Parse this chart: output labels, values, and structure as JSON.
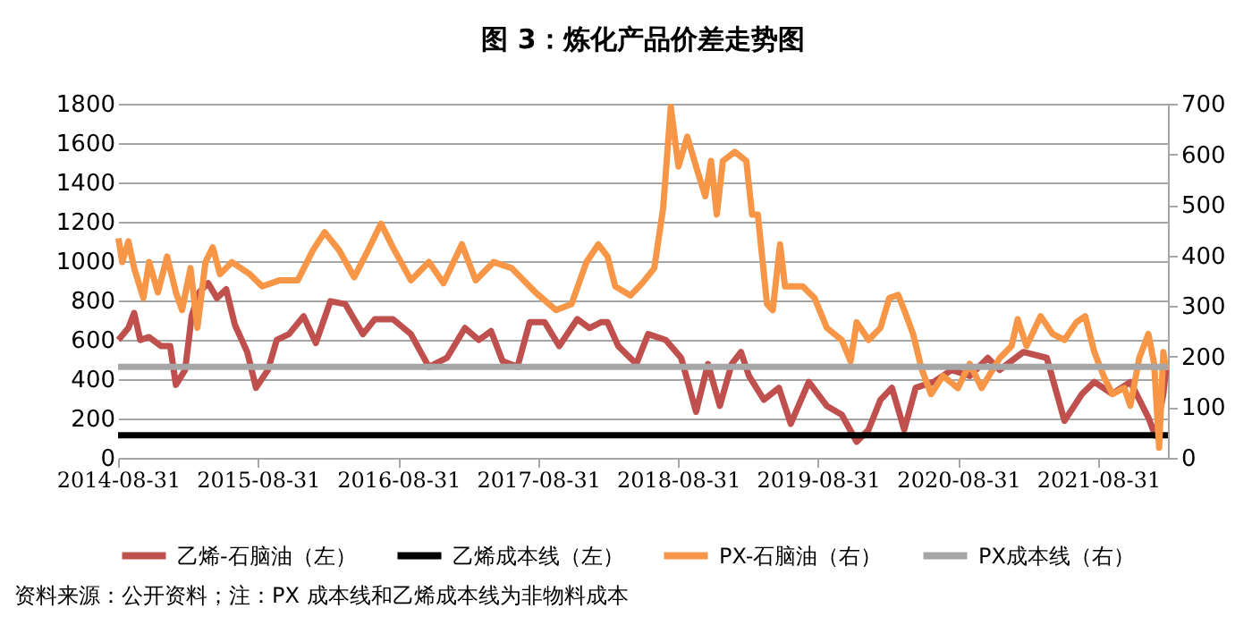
{
  "chart_data": {
    "type": "line",
    "title": "图 3：炼化产品价差走势图",
    "xlim": [
      "2014-08-31",
      "2022-03-01"
    ],
    "xticks": [
      "2014-08-31",
      "2015-08-31",
      "2016-08-31",
      "2017-08-31",
      "2018-08-31",
      "2019-08-31",
      "2020-08-31",
      "2021-08-31"
    ],
    "ylim": [
      0,
      1800
    ],
    "yticks": [
      0,
      200,
      400,
      600,
      800,
      1000,
      1200,
      1400,
      1600,
      1800
    ],
    "y2lim": [
      0,
      700
    ],
    "y2ticks": [
      0,
      100,
      200,
      300,
      400,
      500,
      600,
      700
    ],
    "grid": "y",
    "legend": "bottom",
    "line_style": "solid",
    "marker": "none",
    "annotations": [
      "资料来源：公开资料；注：PX 成本线和乙烯成本线为非物料成本"
    ],
    "series": [
      {
        "name": "乙烯-石脑油（左）",
        "color": "#c0504d",
        "x": [
          "2014-09-01",
          "2014-09-27",
          "2014-10-12",
          "2014-10-28",
          "2014-11-20",
          "2014-12-21",
          "2015-01-14",
          "2015-01-29",
          "2015-02-22",
          "2015-03-11",
          "2015-03-31",
          "2015-04-23",
          "2015-05-16",
          "2015-06-09",
          "2015-07-02",
          "2015-08-03",
          "2015-08-26",
          "2015-09-26",
          "2015-10-19",
          "2015-11-20",
          "2015-12-28",
          "2016-01-29",
          "2016-03-07",
          "2016-04-15",
          "2016-05-31",
          "2016-07-01",
          "2016-08-17",
          "2016-10-03",
          "2016-11-19",
          "2017-01-05",
          "2017-02-21",
          "2017-03-29",
          "2017-04-30",
          "2017-05-30",
          "2017-07-08",
          "2017-08-09",
          "2017-09-17",
          "2017-10-25",
          "2017-12-11",
          "2018-01-12",
          "2018-02-12",
          "2018-02-28",
          "2018-03-28",
          "2018-05-14",
          "2018-06-14",
          "2018-07-30",
          "2018-09-08",
          "2018-10-17",
          "2018-11-17",
          "2018-12-18",
          "2019-01-18",
          "2019-02-11",
          "2019-03-04",
          "2019-04-12",
          "2019-05-21",
          "2019-06-21",
          "2019-08-07",
          "2019-09-23",
          "2019-11-01",
          "2019-12-10",
          "2020-01-10",
          "2020-02-10",
          "2020-03-11",
          "2020-04-12",
          "2020-05-12",
          "2020-06-28",
          "2020-08-14",
          "2020-09-30",
          "2020-11-16",
          "2020-12-17",
          "2021-02-17",
          "2021-04-19",
          "2021-06-04",
          "2021-07-20",
          "2021-08-21",
          "2021-10-07",
          "2021-11-23",
          "2022-01-09",
          "2022-01-27",
          "2022-02-17",
          "2022-02-24"
        ],
        "values": [
          599,
          660,
          736,
          599,
          614,
          568,
          568,
          371,
          447,
          720,
          842,
          888,
          812,
          857,
          675,
          538,
          356,
          447,
          599,
          629,
          720,
          584,
          796,
          781,
          629,
          705,
          705,
          629,
          462,
          508,
          660,
          599,
          644,
          492,
          462,
          690,
          690,
          568,
          705,
          660,
          690,
          690,
          568,
          477,
          629,
          599,
          508,
          234,
          477,
          264,
          477,
          538,
          416,
          295,
          356,
          173,
          386,
          264,
          219,
          82,
          143,
          295,
          356,
          143,
          356,
          386,
          447,
          416,
          508,
          447,
          538,
          508,
          188,
          325,
          386,
          325,
          386,
          204,
          112,
          325,
          447
        ]
      },
      {
        "name": "乙烯成本线（左）",
        "color": "#000000",
        "x": [
          "2014-08-31",
          "2022-03-01"
        ],
        "values": [
          115,
          115
        ]
      },
      {
        "name": "PX-石脑油（右）",
        "color": "#f79646",
        "axis": "y2",
        "x": [
          "2014-09-01",
          "2014-09-11",
          "2014-09-27",
          "2014-10-12",
          "2014-11-05",
          "2014-11-20",
          "2014-12-13",
          "2015-01-06",
          "2015-01-29",
          "2015-02-14",
          "2015-03-08",
          "2015-03-26",
          "2015-04-16",
          "2015-05-05",
          "2015-05-24",
          "2015-06-24",
          "2015-08-10",
          "2015-09-11",
          "2015-10-27",
          "2015-12-13",
          "2016-01-21",
          "2016-02-21",
          "2016-03-30",
          "2016-05-08",
          "2016-06-09",
          "2016-07-17",
          "2016-08-17",
          "2016-10-03",
          "2016-11-19",
          "2016-12-27",
          "2017-02-13",
          "2017-03-21",
          "2017-05-07",
          "2017-06-23",
          "2017-08-24",
          "2017-10-17",
          "2017-11-26",
          "2018-01-04",
          "2018-02-04",
          "2018-02-28",
          "2018-03-20",
          "2018-04-29",
          "2018-05-29",
          "2018-06-30",
          "2018-07-23",
          "2018-08-12",
          "2018-09-01",
          "2018-09-24",
          "2018-10-17",
          "2018-11-10",
          "2018-11-25",
          "2018-12-10",
          "2018-12-26",
          "2019-01-26",
          "2019-02-25",
          "2019-03-12",
          "2019-03-27",
          "2019-04-20",
          "2019-05-05",
          "2019-05-24",
          "2019-06-06",
          "2019-07-22",
          "2019-08-22",
          "2019-09-23",
          "2019-11-01",
          "2019-11-24",
          "2019-12-10",
          "2020-01-10",
          "2020-02-10",
          "2020-03-04",
          "2020-03-27",
          "2020-04-12",
          "2020-05-05",
          "2020-05-28",
          "2020-06-21",
          "2020-07-22",
          "2020-08-30",
          "2020-09-30",
          "2020-10-31",
          "2020-12-17",
          "2021-01-17",
          "2021-02-02",
          "2021-02-25",
          "2021-04-03",
          "2021-05-04",
          "2021-06-04",
          "2021-07-05",
          "2021-07-28",
          "2021-08-21",
          "2021-09-14",
          "2021-10-07",
          "2021-11-07",
          "2021-11-23",
          "2021-12-16",
          "2022-01-09",
          "2022-01-24",
          "2022-02-06",
          "2022-02-17",
          "2022-02-24"
        ],
        "values": [
          434,
          387,
          428,
          375,
          316,
          387,
          327,
          398,
          327,
          292,
          375,
          257,
          387,
          416,
          363,
          387,
          363,
          339,
          351,
          351,
          410,
          446,
          410,
          357,
          404,
          463,
          416,
          351,
          387,
          345,
          422,
          351,
          387,
          375,
          327,
          292,
          304,
          387,
          422,
          398,
          339,
          321,
          345,
          375,
          493,
          694,
          576,
          635,
          576,
          517,
          587,
          481,
          587,
          605,
          587,
          481,
          481,
          304,
          292,
          422,
          339,
          339,
          316,
          257,
          233,
          191,
          268,
          233,
          257,
          316,
          322,
          292,
          245,
          174,
          126,
          162,
          138,
          186,
          138,
          197,
          221,
          274,
          221,
          280,
          245,
          233,
          268,
          280,
          209,
          162,
          126,
          138,
          103,
          197,
          245,
          186,
          20,
          209,
          174
        ]
      },
      {
        "name": "PX成本线（右）",
        "color": "#a6a6a6",
        "axis": "y2",
        "x": [
          "2014-08-31",
          "2022-03-01"
        ],
        "values": [
          180,
          180
        ]
      }
    ]
  }
}
